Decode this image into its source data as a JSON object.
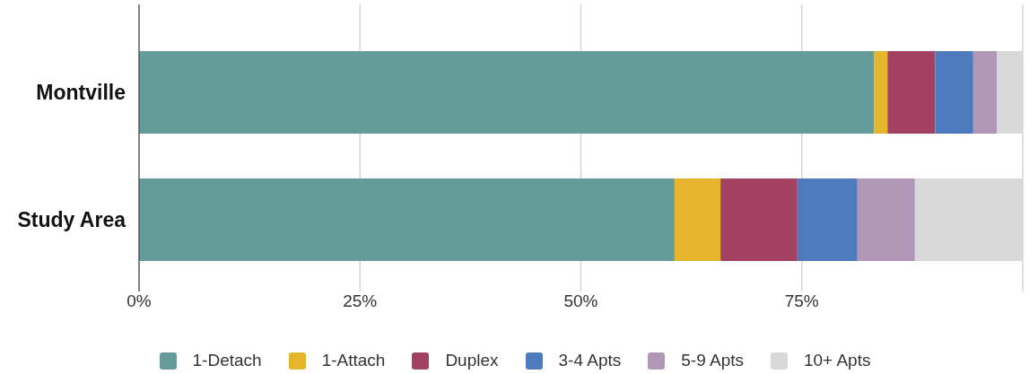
{
  "chart_data": {
    "type": "bar",
    "orientation": "horizontal",
    "stacked": true,
    "categories": [
      "Montville",
      "Study Area"
    ],
    "series": [
      {
        "name": "1-Detach",
        "color": "#659c99",
        "values": [
          83.2,
          60.6
        ]
      },
      {
        "name": "1-Attach",
        "color": "#e5b52b",
        "values": [
          1.5,
          5.2
        ]
      },
      {
        "name": "Duplex",
        "color": "#a44163",
        "values": [
          5.4,
          8.7
        ]
      },
      {
        "name": "3-4 Apts",
        "color": "#4e7bbd",
        "values": [
          4.3,
          6.8
        ]
      },
      {
        "name": "5-9 Apts",
        "color": "#b096b7",
        "values": [
          2.7,
          6.5
        ]
      },
      {
        "name": "10+ Apts",
        "color": "#d9d9d9",
        "values": [
          2.9,
          12.2
        ]
      }
    ],
    "xlim": [
      0,
      100
    ],
    "xticks": [
      {
        "value": 0,
        "label": "0%"
      },
      {
        "value": 25,
        "label": "25%"
      },
      {
        "value": 50,
        "label": "50%"
      },
      {
        "value": 75,
        "label": "75%"
      }
    ],
    "grid": "x",
    "legend": "bottom"
  }
}
